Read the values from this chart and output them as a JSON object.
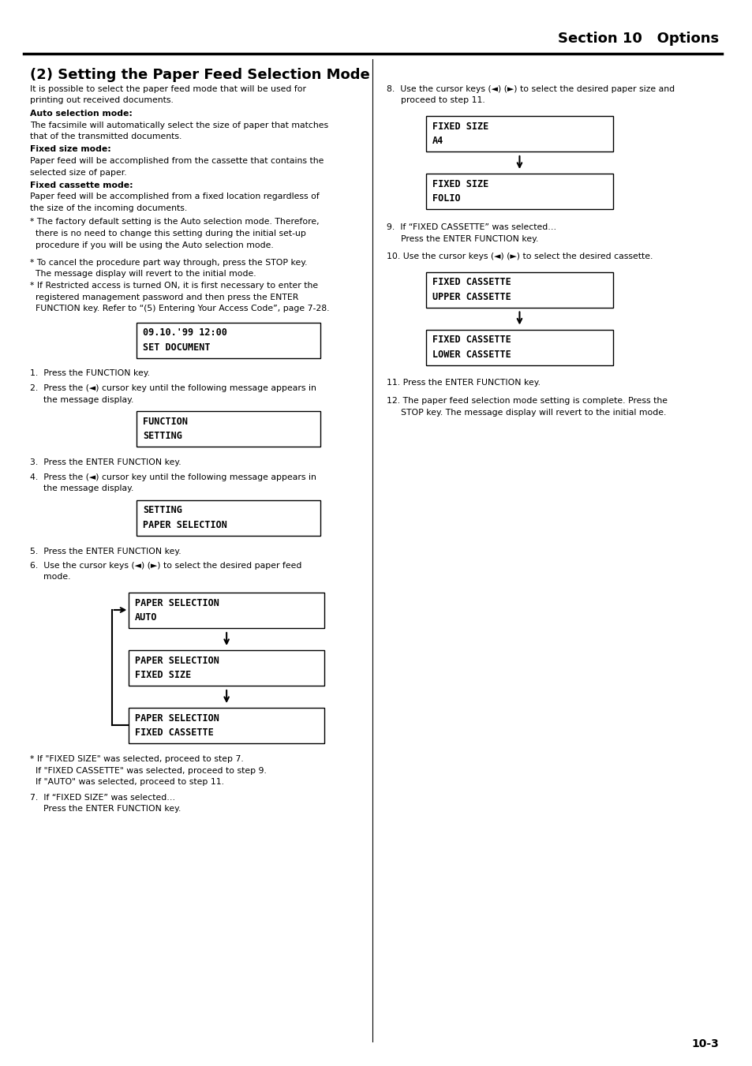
{
  "title": "Section 10   Options",
  "section_title": "(2) Setting the Paper Feed Selection Mode",
  "page_number": "10-3",
  "background_color": "#ffffff",
  "text_color": "#000000"
}
